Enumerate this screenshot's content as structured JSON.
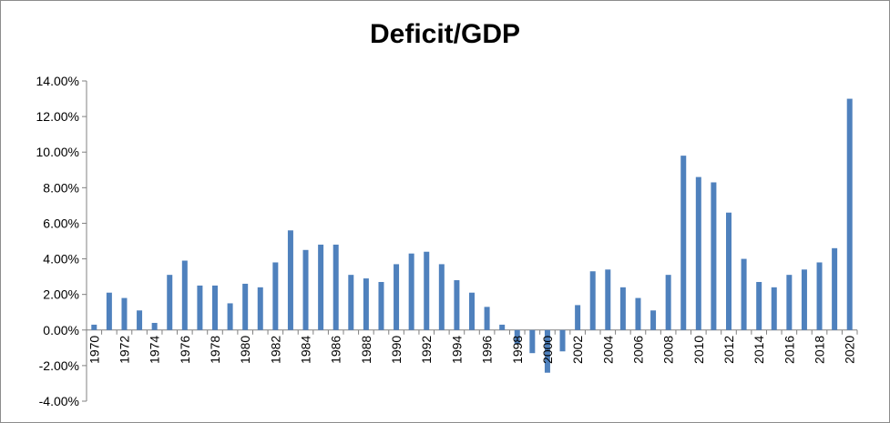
{
  "chart_data": {
    "type": "bar",
    "title": "Deficit/GDP",
    "xlabel": "",
    "ylabel": "",
    "ylim": [
      -4,
      14
    ],
    "y_ticks": [
      "14.00%",
      "12.00%",
      "10.00%",
      "8.00%",
      "6.00%",
      "4.00%",
      "2.00%",
      "0.00%",
      "-2.00%",
      "-4.00%"
    ],
    "y_tick_values": [
      14,
      12,
      10,
      8,
      6,
      4,
      2,
      0,
      -2,
      -4
    ],
    "categories": [
      "1970",
      "1971",
      "1972",
      "1973",
      "1974",
      "1975",
      "1976",
      "1977",
      "1978",
      "1979",
      "1980",
      "1981",
      "1982",
      "1983",
      "1984",
      "1985",
      "1986",
      "1987",
      "1988",
      "1989",
      "1990",
      "1991",
      "1992",
      "1993",
      "1994",
      "1995",
      "1996",
      "1997",
      "1998",
      "1999",
      "2000",
      "2001",
      "2002",
      "2003",
      "2004",
      "2005",
      "2006",
      "2007",
      "2008",
      "2009",
      "2010",
      "2011",
      "2012",
      "2013",
      "2014",
      "2015",
      "2016",
      "2017",
      "2018",
      "2019",
      "2020"
    ],
    "x_tick_labels": [
      "1970",
      "1972",
      "1974",
      "1976",
      "1978",
      "1980",
      "1982",
      "1984",
      "1986",
      "1988",
      "1990",
      "1992",
      "1994",
      "1996",
      "1998",
      "2000",
      "2002",
      "2004",
      "2006",
      "2008",
      "2010",
      "2012",
      "2014",
      "2016",
      "2018",
      "2020"
    ],
    "values": [
      0.3,
      2.1,
      1.8,
      1.1,
      0.4,
      3.1,
      3.9,
      2.5,
      2.5,
      1.5,
      2.6,
      2.4,
      3.8,
      5.6,
      4.5,
      4.8,
      4.8,
      3.1,
      2.9,
      2.7,
      3.7,
      4.3,
      4.4,
      3.7,
      2.8,
      2.1,
      1.3,
      0.3,
      -0.8,
      -1.3,
      -2.4,
      -1.2,
      1.4,
      3.3,
      3.4,
      2.4,
      1.8,
      1.1,
      3.1,
      9.8,
      8.6,
      8.3,
      6.6,
      4.0,
      2.7,
      2.4,
      3.1,
      3.4,
      3.8,
      4.6,
      13.0
    ],
    "grid": false,
    "legend": "none",
    "bar_color": "#4f81bd"
  }
}
